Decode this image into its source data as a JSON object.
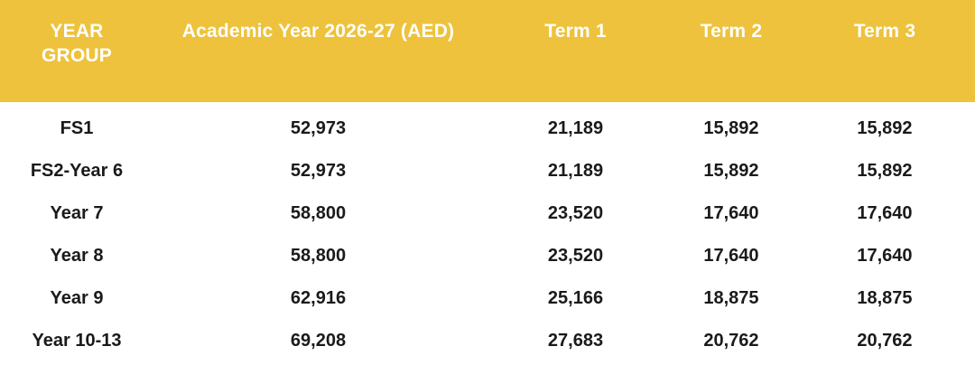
{
  "colors": {
    "header-bg": "#EEC23C",
    "header-text": "#FFFFFF",
    "body-text": "#1A1A1A",
    "page-bg": "#FFFFFF"
  },
  "chart_data": {
    "type": "table",
    "title": "",
    "columns": [
      "YEAR GROUP",
      "Academic Year 2026-27 (AED)",
      "Term 1",
      "Term 2",
      "Term 3"
    ],
    "rows": [
      [
        "FS1",
        "52,973",
        "21,189",
        "15,892",
        "15,892"
      ],
      [
        "FS2-Year 6",
        "52,973",
        "21,189",
        "15,892",
        "15,892"
      ],
      [
        "Year 7",
        "58,800",
        "23,520",
        "17,640",
        "17,640"
      ],
      [
        "Year 8",
        "58,800",
        "23,520",
        "17,640",
        "17,640"
      ],
      [
        "Year 9",
        "62,916",
        "25,166",
        "18,875",
        "18,875"
      ],
      [
        "Year 10-13",
        "69,208",
        "27,683",
        "20,762",
        "20,762"
      ]
    ]
  }
}
